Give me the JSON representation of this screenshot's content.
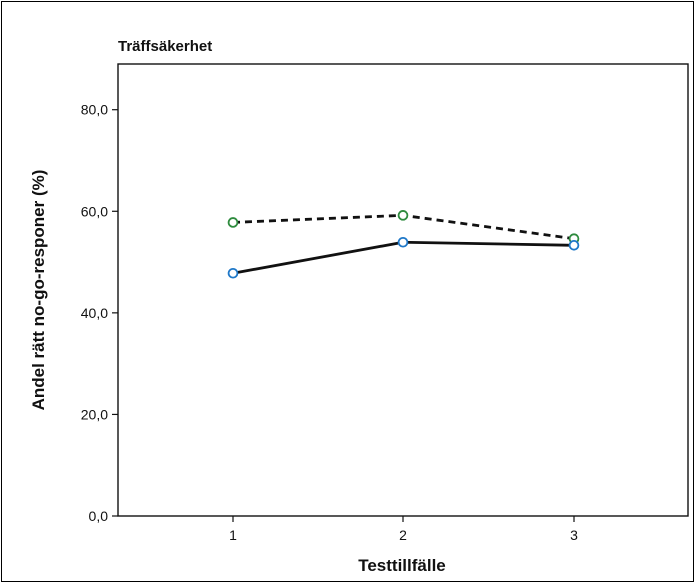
{
  "chart_data": {
    "type": "line",
    "title": "Träffsäkerhet",
    "xlabel": "Testtillfälle",
    "ylabel": "Andel rätt no-go-responer (%)",
    "categories": [
      "1",
      "2",
      "3"
    ],
    "y_ticks": [
      "0,0",
      "20,0",
      "40,0",
      "60,0",
      "80,0"
    ],
    "y_tick_values": [
      0,
      20,
      40,
      60,
      80
    ],
    "ylim": [
      0,
      89
    ],
    "grid": false,
    "legend": "none",
    "series": [
      {
        "values": [
          57.8,
          59.2,
          54.6
        ],
        "line_style": "dashed",
        "line_color": "#111111",
        "marker_color": "#2e8b3e"
      },
      {
        "values": [
          47.8,
          53.9,
          53.3
        ],
        "line_style": "solid",
        "line_color": "#111111",
        "marker_color": "#1f78c8"
      }
    ]
  }
}
